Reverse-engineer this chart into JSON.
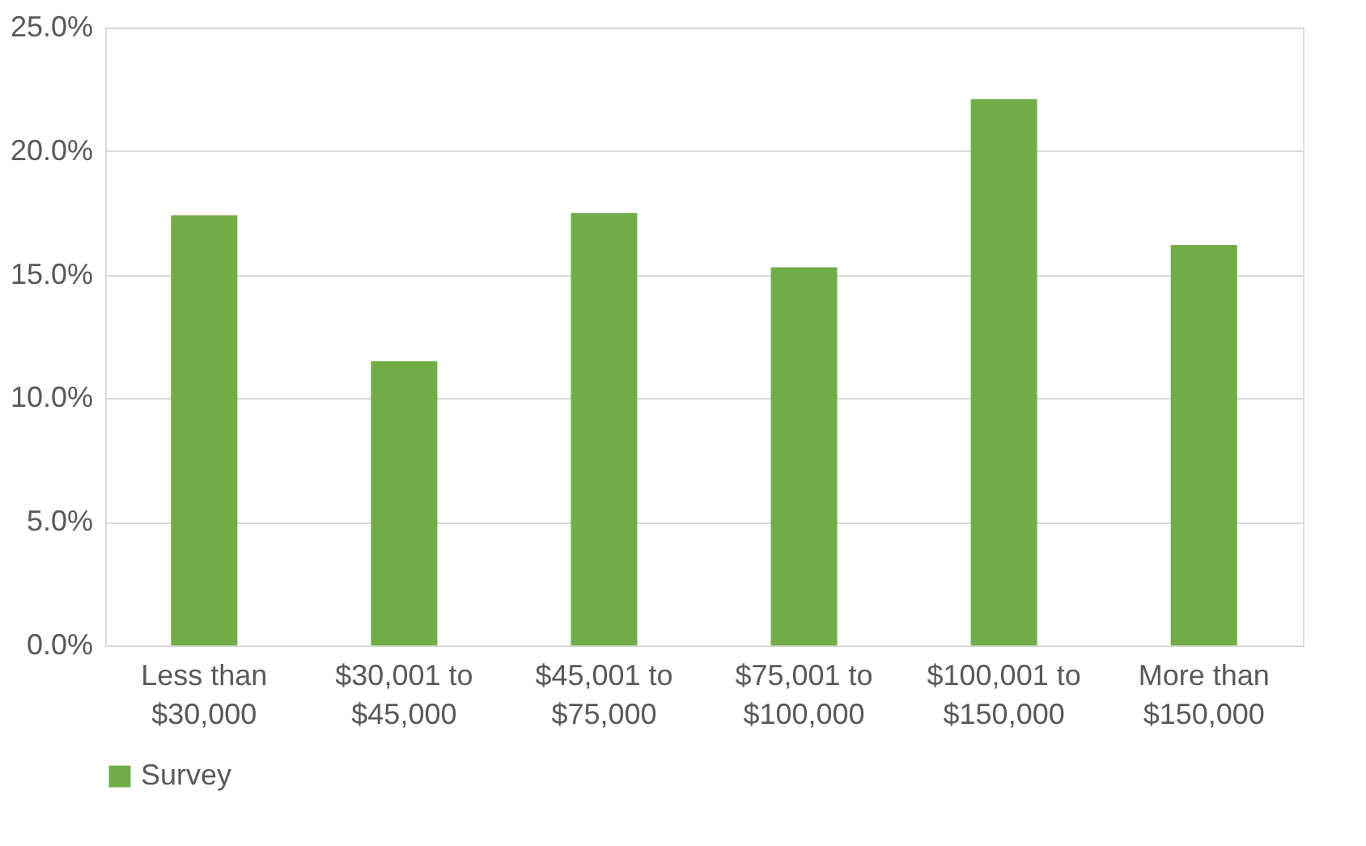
{
  "chart_data": {
    "type": "bar",
    "categories": [
      "Less than $30,000",
      "$30,001 to $45,000",
      "$45,001 to $75,000",
      "$75,001 to $100,000",
      "$100,001 to $150,000",
      "More than $150,000"
    ],
    "series": [
      {
        "name": "Survey",
        "color": "#70ad47",
        "values": [
          17.4,
          11.5,
          17.5,
          15.3,
          22.1,
          16.2
        ]
      }
    ],
    "ylim": [
      0,
      25
    ],
    "yticks": [
      {
        "value": 0,
        "label": "0.0%"
      },
      {
        "value": 5,
        "label": "5.0%"
      },
      {
        "value": 10,
        "label": "10.0%"
      },
      {
        "value": 15,
        "label": "15.0%"
      },
      {
        "value": 20,
        "label": "20.0%"
      },
      {
        "value": 25,
        "label": "25.0%"
      }
    ],
    "grid": "y",
    "legend": "bottom"
  }
}
